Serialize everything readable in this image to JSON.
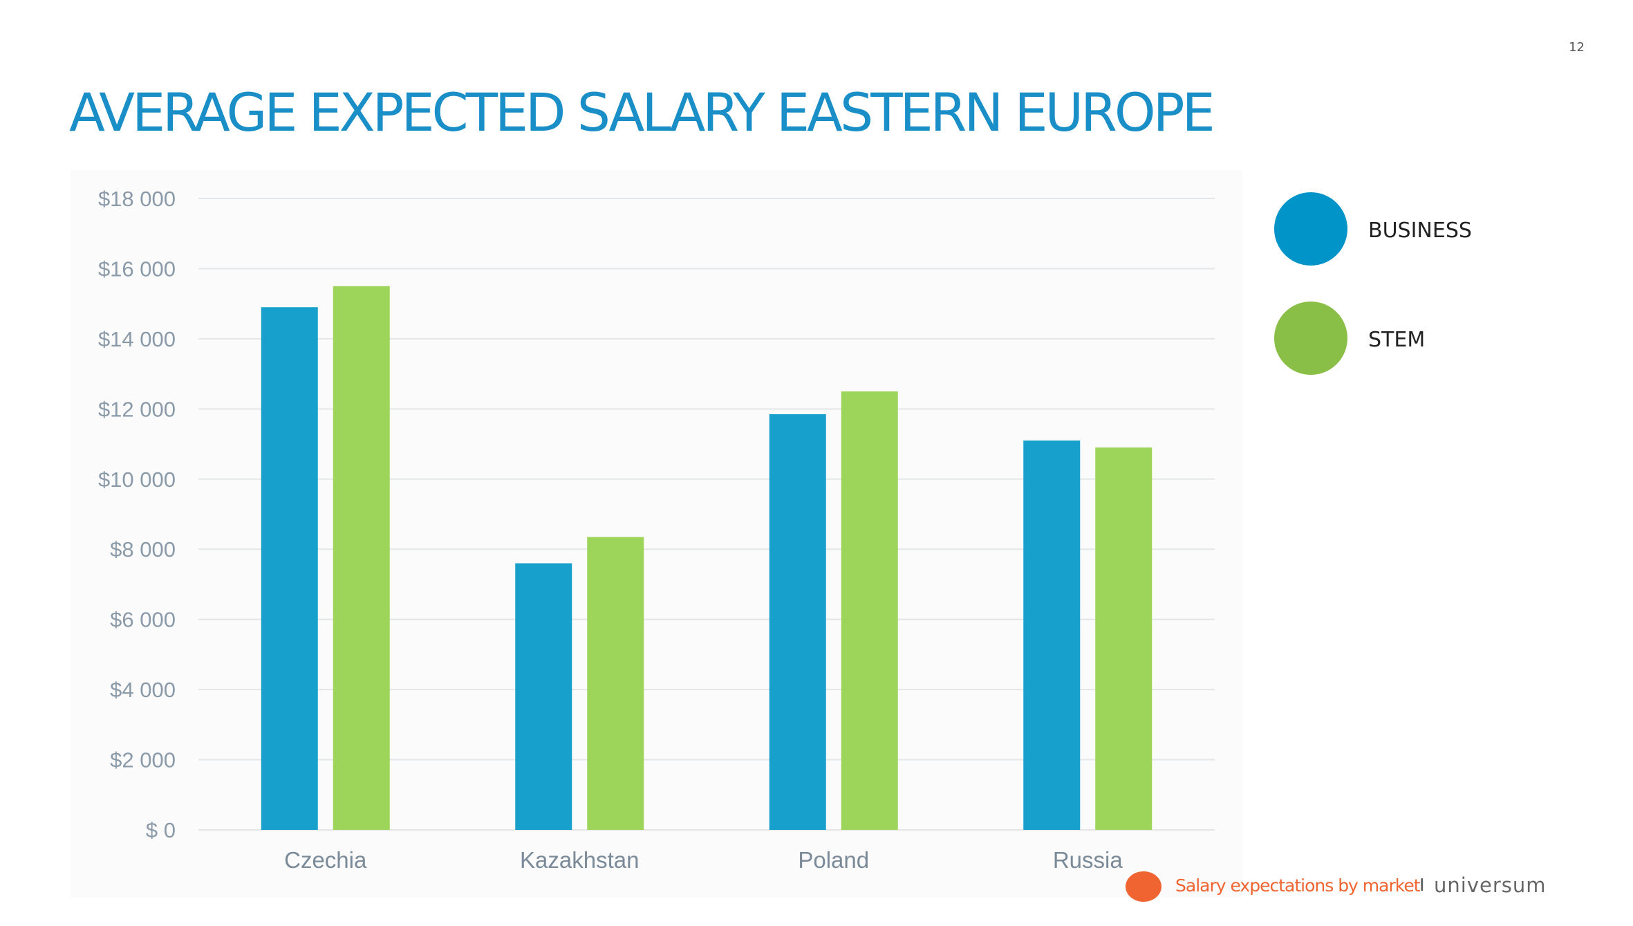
{
  "page": {
    "number": "12",
    "title": "AVERAGE EXPECTED SALARY EASTERN EUROPE"
  },
  "legend": {
    "items": [
      {
        "label": "BUSINESS",
        "color": "#0094c8"
      },
      {
        "label": "STEM",
        "color": "#89bf47"
      }
    ]
  },
  "footer": {
    "dot_color": "#ef6430",
    "text": "Salary expectations by market",
    "separator": "I",
    "brand": "universum"
  },
  "chart_data": {
    "type": "bar",
    "categories": [
      "Czechia",
      "Kazakhstan",
      "Poland",
      "Russia"
    ],
    "series": [
      {
        "name": "BUSINESS",
        "color": "#16a0cb",
        "values": [
          14900,
          7600,
          11850,
          11100
        ]
      },
      {
        "name": "STEM",
        "color": "#9dd55b",
        "values": [
          15500,
          8350,
          12500,
          10900
        ]
      }
    ],
    "ylim": [
      0,
      18000
    ],
    "yticks": [
      0,
      2000,
      4000,
      6000,
      8000,
      10000,
      12000,
      14000,
      16000,
      18000
    ],
    "ytick_labels": [
      "$ 0",
      "$2 000",
      "$4 000",
      "$6 000",
      "$8 000",
      "$10 000",
      "$12 000",
      "$14 000",
      "$16 000",
      "$18 000"
    ],
    "grid": true,
    "legend_position": "right"
  }
}
